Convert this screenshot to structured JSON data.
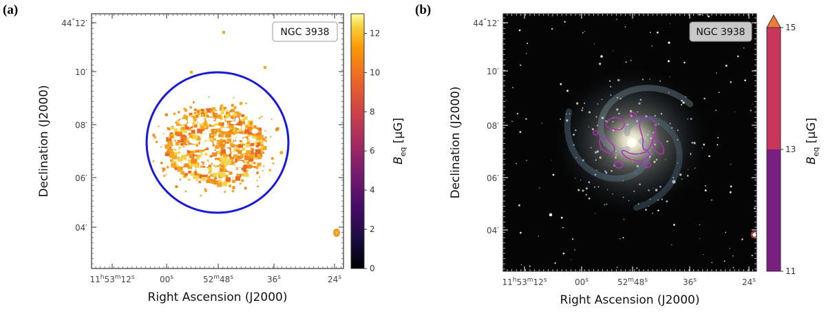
{
  "chart_data": [
    {
      "type": "image",
      "panel_label": "(a)",
      "tag": "NGC 3938",
      "xlabel": "Right Ascension (J2000)",
      "ylabel": "Declination (J2000)",
      "x_ticks": [
        {
          "h": "11",
          "m": "53",
          "s": "12",
          "kind": "hms"
        },
        {
          "s": "00",
          "kind": "s"
        },
        {
          "m": "52",
          "s": "48",
          "kind": "ms"
        },
        {
          "s": "36",
          "kind": "s"
        },
        {
          "s": "24",
          "kind": "s"
        }
      ],
      "y_ticks": [
        {
          "d": "44",
          "m": "12",
          "kind": "dm"
        },
        {
          "m": "10",
          "kind": "m"
        },
        {
          "m": "08",
          "kind": "m"
        },
        {
          "m": "06",
          "kind": "m"
        },
        {
          "m": "04",
          "kind": "m"
        }
      ],
      "colorbar": {
        "cmap": "inferno",
        "range": [
          0,
          13
        ],
        "ticks": [
          "0",
          "2",
          "4",
          "6",
          "8",
          "10",
          "12"
        ],
        "label_main": "B",
        "label_sub": "eq",
        "label_unit": "[μG]"
      },
      "circle_color": "#1a1ad6",
      "emission_range_uG": [
        8,
        12
      ]
    },
    {
      "type": "image",
      "panel_label": "(b)",
      "tag": "NGC 3938",
      "xlabel": "Right Ascension (J2000)",
      "ylabel": "Declination (J2000)",
      "x_ticks": [
        {
          "h": "11",
          "m": "53",
          "s": "12",
          "kind": "hms"
        },
        {
          "s": "00",
          "kind": "s"
        },
        {
          "m": "52",
          "s": "48",
          "kind": "ms"
        },
        {
          "s": "36",
          "kind": "s"
        },
        {
          "s": "24",
          "kind": "s"
        }
      ],
      "y_ticks": [
        {
          "d": "44",
          "m": "12",
          "kind": "dm"
        },
        {
          "m": "10",
          "kind": "m"
        },
        {
          "m": "08",
          "kind": "m"
        },
        {
          "m": "06",
          "kind": "m"
        },
        {
          "m": "04",
          "kind": "m"
        }
      ],
      "colorbar": {
        "cmap": "discrete",
        "range": [
          11,
          15
        ],
        "ticks": [
          "11",
          "13",
          "15"
        ],
        "levels": [
          {
            "from": 11,
            "to": 13,
            "color": "#7a1e82"
          },
          {
            "from": 13,
            "to": 15,
            "color": "#c8365a"
          }
        ],
        "extend_color": "#f07b3a",
        "label_main": "B",
        "label_sub": "eq",
        "label_unit": "[μG]"
      },
      "contour_color": "#b032b8"
    }
  ]
}
